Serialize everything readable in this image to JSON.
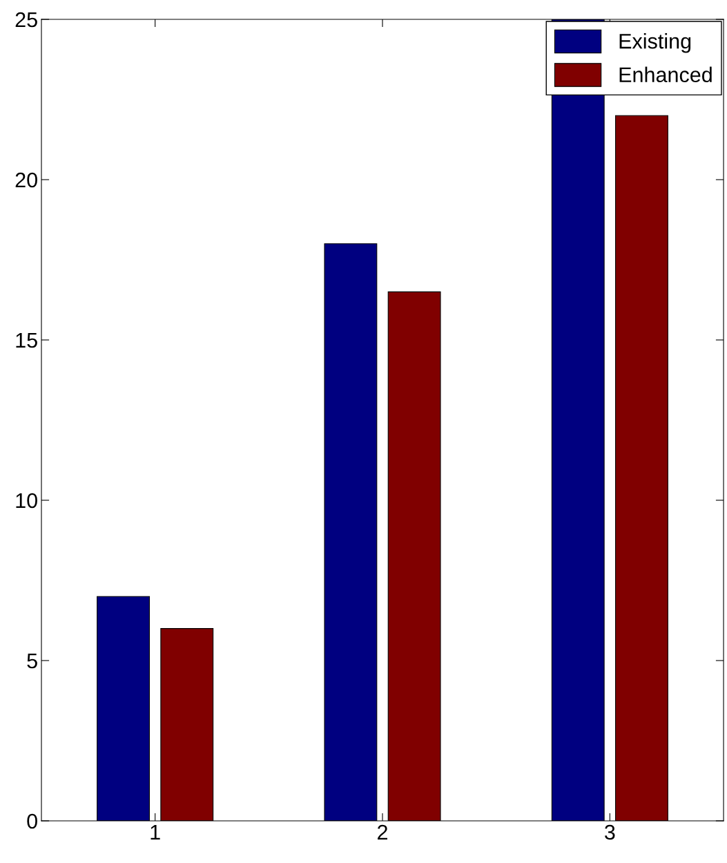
{
  "chart_data": {
    "type": "bar",
    "categories": [
      "1",
      "2",
      "3"
    ],
    "series": [
      {
        "name": "Existing",
        "color": "#000080",
        "values": [
          7,
          18,
          25
        ]
      },
      {
        "name": "Enhanced",
        "color": "#800000",
        "values": [
          6,
          16.5,
          22
        ]
      }
    ],
    "ylim": [
      0,
      25
    ],
    "yticks": [
      0,
      5,
      10,
      15,
      20,
      25
    ],
    "grid": false,
    "legend": "top right"
  }
}
